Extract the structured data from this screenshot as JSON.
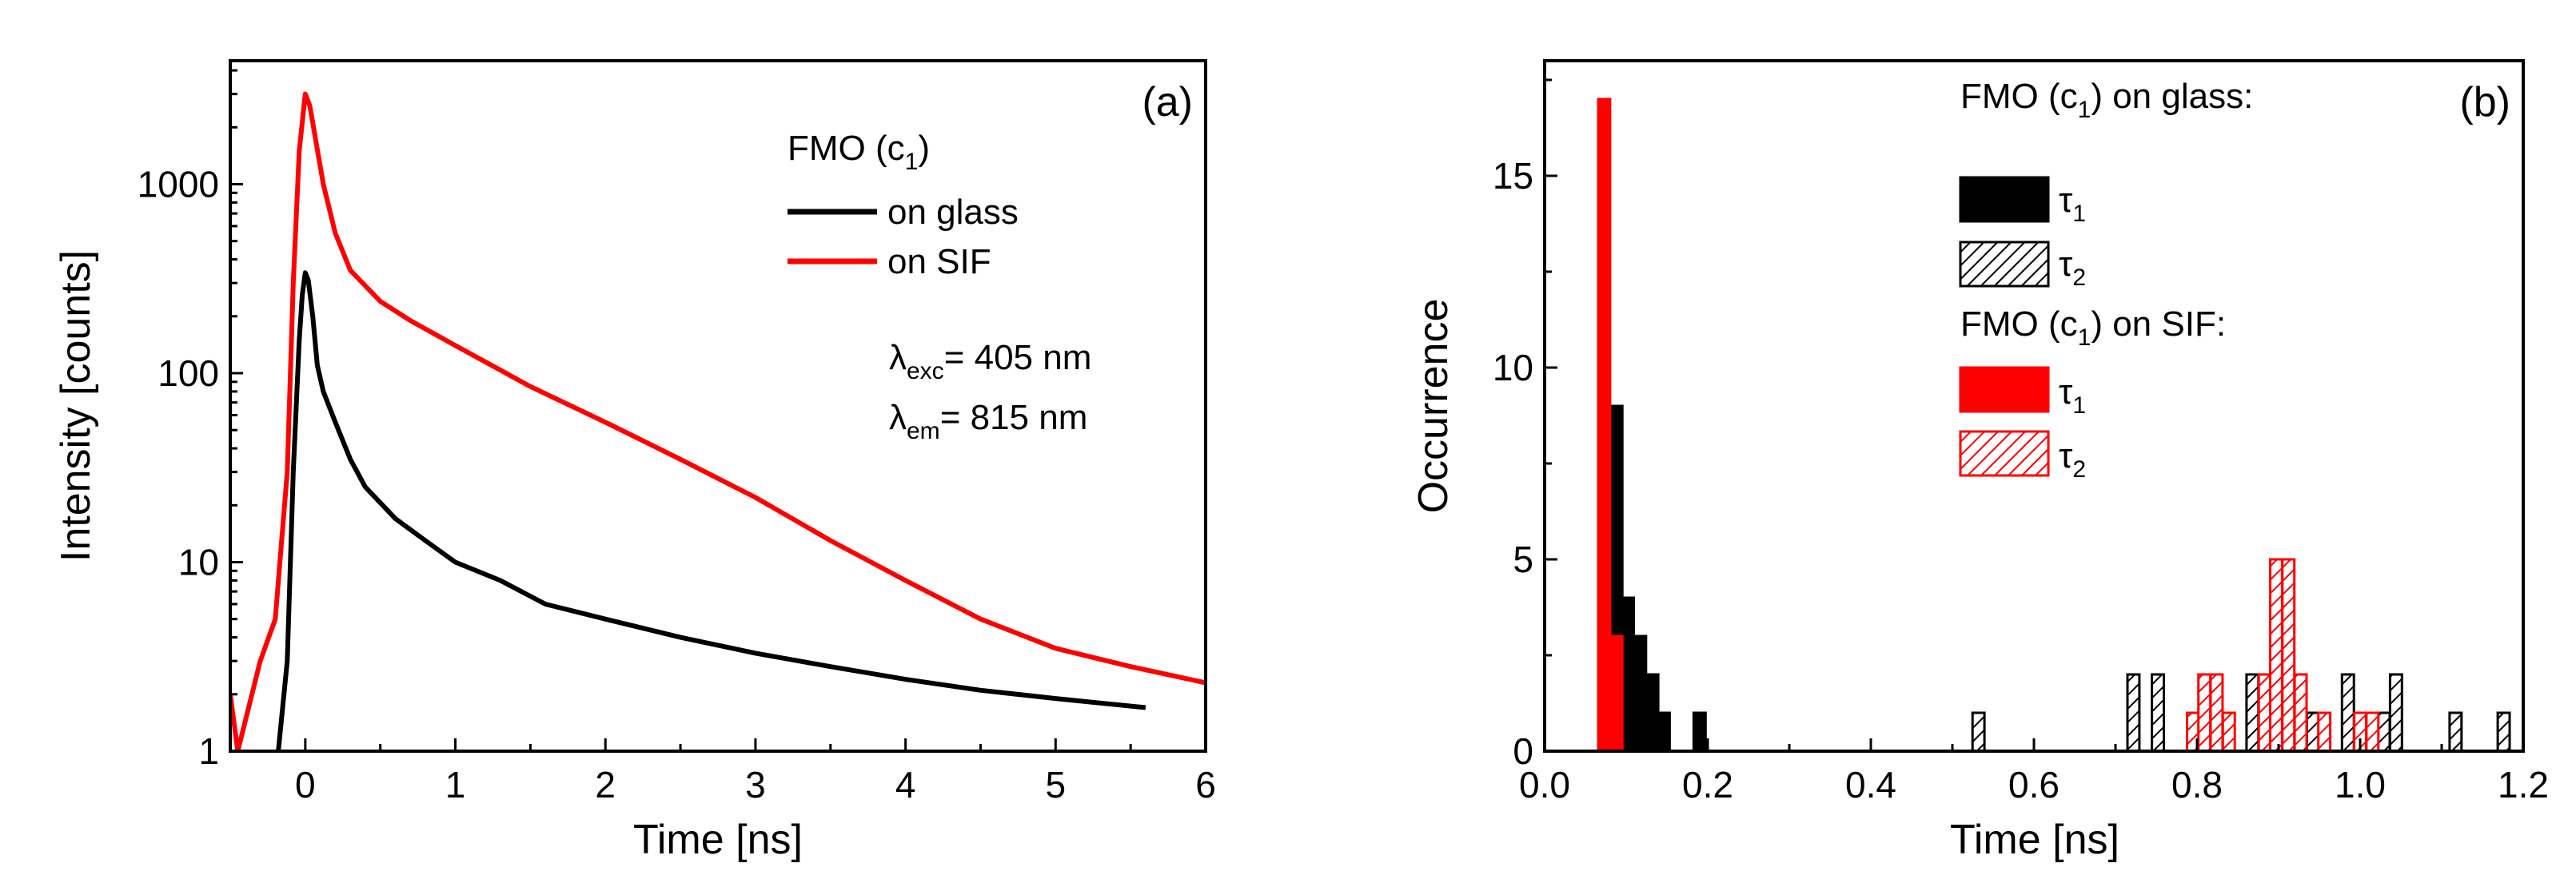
{
  "colors": {
    "glass": "#000000",
    "sif": "#ff0000",
    "axis": "#000000",
    "background": "#ffffff"
  },
  "chart_data": [
    {
      "type": "line",
      "panel_label": "(a)",
      "xlabel": "Time [ns]",
      "ylabel": "Intensity [counts]",
      "xlim": [
        -0.5,
        6
      ],
      "ylim": [
        1,
        4500
      ],
      "yscale": "log",
      "xticks": [
        0,
        1,
        2,
        3,
        4,
        5,
        6
      ],
      "yticks": [
        1,
        10,
        100,
        1000
      ],
      "ytick_labels": [
        "1",
        "10",
        "100",
        "1000"
      ],
      "legend": {
        "title_main": "FMO (c",
        "title_sub": "1",
        "title_close": ")",
        "entries": [
          "on glass",
          "on SIF"
        ]
      },
      "annotations": [
        {
          "symbol": "λ",
          "sub": "exc",
          "text": "= 405 nm"
        },
        {
          "symbol": "λ",
          "sub": "em",
          "text": "= 815 nm"
        }
      ],
      "series": [
        {
          "name": "on glass",
          "x": [
            -0.18,
            -0.12,
            -0.08,
            -0.04,
            -0.02,
            0.0,
            0.02,
            0.05,
            0.08,
            0.12,
            0.2,
            0.3,
            0.4,
            0.6,
            0.8,
            1.0,
            1.3,
            1.6,
            2.0,
            2.5,
            3.0,
            3.5,
            4.0,
            4.5,
            5.0,
            5.6
          ],
          "y": [
            1,
            3,
            30,
            150,
            260,
            340,
            310,
            200,
            110,
            80,
            55,
            35,
            25,
            17,
            13,
            10,
            8,
            6,
            5,
            4,
            3.3,
            2.8,
            2.4,
            2.1,
            1.9,
            1.7
          ]
        },
        {
          "name": "on SIF",
          "x": [
            -0.5,
            -0.45,
            -0.3,
            -0.2,
            -0.12,
            -0.08,
            -0.04,
            0.0,
            0.03,
            0.07,
            0.12,
            0.2,
            0.3,
            0.5,
            0.7,
            1.0,
            1.5,
            2.0,
            2.5,
            3.0,
            3.5,
            4.0,
            4.5,
            5.0,
            5.5,
            6.0
          ],
          "y": [
            2,
            1,
            3,
            5,
            30,
            300,
            1500,
            3000,
            2600,
            1700,
            1000,
            550,
            350,
            240,
            190,
            140,
            85,
            55,
            35,
            22,
            13,
            8,
            5,
            3.5,
            2.8,
            2.3
          ]
        }
      ]
    },
    {
      "type": "bar",
      "panel_label": "(b)",
      "xlabel": "Time [ns]",
      "ylabel": "Occurrence",
      "xlim": [
        0.0,
        1.2
      ],
      "ylim": [
        0,
        18
      ],
      "xticks": [
        0.0,
        0.2,
        0.4,
        0.6,
        0.8,
        1.0,
        1.2
      ],
      "xtick_labels": [
        "0.0",
        "0.2",
        "0.4",
        "0.6",
        "0.8",
        "1.0",
        "1.2"
      ],
      "yticks": [
        0,
        5,
        10,
        15
      ],
      "bin_width": 0.0146,
      "legend": {
        "glass_title": "FMO (c",
        "glass_title_sub": "1",
        "glass_title_end": ") on glass:",
        "sif_title": "FMO (c",
        "sif_title_sub": "1",
        "sif_title_end": ") on SIF:",
        "tau_symbol": "τ",
        "tau1_sub": "1",
        "tau2_sub": "2"
      },
      "series": [
        {
          "name": "glass τ1",
          "style": "solid",
          "color": "glass",
          "x": [
            0.088,
            0.102,
            0.117,
            0.132,
            0.146,
            0.19
          ],
          "values": [
            9,
            4,
            3,
            2,
            1,
            1
          ]
        },
        {
          "name": "glass τ2",
          "style": "hatched",
          "color": "glass",
          "x": [
            0.532,
            0.722,
            0.752,
            0.868,
            0.942,
            0.985,
            1.029,
            1.044,
            1.117,
            1.176
          ],
          "values": [
            1,
            2,
            2,
            2,
            1,
            2,
            1,
            2,
            1,
            1
          ]
        },
        {
          "name": "SIF τ1",
          "style": "solid",
          "color": "sif",
          "x": [
            0.073,
            0.088
          ],
          "values": [
            17,
            3
          ]
        },
        {
          "name": "SIF τ2",
          "style": "hatched",
          "color": "sif",
          "x": [
            0.795,
            0.809,
            0.824,
            0.839,
            0.883,
            0.897,
            0.912,
            0.927,
            0.956,
            1.0,
            1.015
          ],
          "values": [
            1,
            2,
            2,
            1,
            2,
            5,
            5,
            2,
            1,
            1,
            1
          ]
        }
      ]
    }
  ]
}
